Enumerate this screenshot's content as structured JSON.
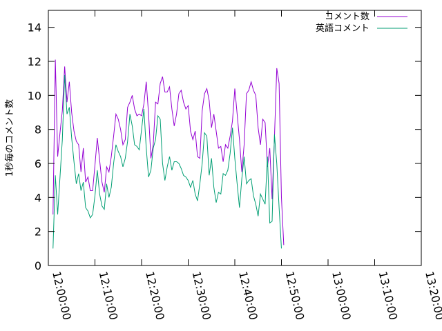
{
  "chart_data": {
    "type": "line",
    "title": "",
    "xlabel": "",
    "ylabel": "1秒毎のコメント数",
    "xlim": [
      "12:00:00",
      "13:20:00"
    ],
    "ylim": [
      0,
      15
    ],
    "xticks": [
      "12:00:00",
      "12:10:00",
      "12:20:00",
      "12:30:00",
      "12:40:00",
      "12:50:00",
      "13:00:00",
      "13:10:00",
      "13:20:00"
    ],
    "yticks": [
      0,
      2,
      4,
      6,
      8,
      10,
      12,
      14
    ],
    "grid": false,
    "legend_position": "top-right",
    "series": [
      {
        "name": "コメント数",
        "color": "#9400d3",
        "points": [
          [
            "12:01:00",
            3.0
          ],
          [
            "12:01:30",
            12.1
          ],
          [
            "12:02:00",
            6.4
          ],
          [
            "12:02:30",
            7.8
          ],
          [
            "12:03:00",
            9.1
          ],
          [
            "12:03:30",
            11.7
          ],
          [
            "12:04:00",
            9.6
          ],
          [
            "12:04:30",
            10.8
          ],
          [
            "12:05:00",
            9.0
          ],
          [
            "12:05:30",
            7.9
          ],
          [
            "12:06:00",
            7.3
          ],
          [
            "12:06:30",
            7.1
          ],
          [
            "12:07:00",
            5.5
          ],
          [
            "12:07:30",
            6.9
          ],
          [
            "12:08:00",
            4.9
          ],
          [
            "12:08:30",
            5.2
          ],
          [
            "12:09:00",
            4.4
          ],
          [
            "12:09:30",
            4.4
          ],
          [
            "12:10:00",
            5.9
          ],
          [
            "12:10:30",
            7.5
          ],
          [
            "12:11:00",
            6.2
          ],
          [
            "12:11:30",
            4.9
          ],
          [
            "12:12:00",
            4.3
          ],
          [
            "12:12:30",
            5.8
          ],
          [
            "12:13:00",
            5.5
          ],
          [
            "12:13:30",
            6.4
          ],
          [
            "12:14:00",
            7.6
          ],
          [
            "12:14:30",
            8.9
          ],
          [
            "12:15:00",
            8.6
          ],
          [
            "12:15:30",
            8.0
          ],
          [
            "12:16:00",
            7.1
          ],
          [
            "12:16:30",
            7.4
          ],
          [
            "12:17:00",
            9.3
          ],
          [
            "12:17:30",
            9.6
          ],
          [
            "12:18:00",
            10.0
          ],
          [
            "12:18:30",
            9.2
          ],
          [
            "12:19:00",
            8.8
          ],
          [
            "12:19:30",
            8.9
          ],
          [
            "12:20:00",
            8.8
          ],
          [
            "12:20:30",
            9.5
          ],
          [
            "12:21:00",
            10.8
          ],
          [
            "12:21:30",
            8.9
          ],
          [
            "12:22:00",
            6.3
          ],
          [
            "12:22:30",
            7.1
          ],
          [
            "12:23:00",
            9.6
          ],
          [
            "12:23:30",
            9.5
          ],
          [
            "12:24:00",
            10.7
          ],
          [
            "12:24:30",
            11.1
          ],
          [
            "12:25:00",
            10.2
          ],
          [
            "12:25:30",
            10.2
          ],
          [
            "12:26:00",
            10.5
          ],
          [
            "12:26:30",
            9.2
          ],
          [
            "12:27:00",
            8.2
          ],
          [
            "12:27:30",
            8.9
          ],
          [
            "12:28:00",
            10.1
          ],
          [
            "12:28:30",
            10.3
          ],
          [
            "12:29:00",
            9.6
          ],
          [
            "12:29:30",
            9.2
          ],
          [
            "12:30:00",
            9.4
          ],
          [
            "12:30:30",
            7.9
          ],
          [
            "12:31:00",
            7.4
          ],
          [
            "12:31:30",
            7.9
          ],
          [
            "12:32:00",
            6.4
          ],
          [
            "12:32:30",
            6.3
          ],
          [
            "12:33:00",
            9.1
          ],
          [
            "12:33:30",
            10.1
          ],
          [
            "12:34:00",
            10.4
          ],
          [
            "12:34:30",
            9.7
          ],
          [
            "12:35:00",
            8.1
          ],
          [
            "12:35:30",
            8.9
          ],
          [
            "12:36:00",
            7.9
          ],
          [
            "12:36:30",
            6.9
          ],
          [
            "12:37:00",
            7.0
          ],
          [
            "12:37:30",
            6.1
          ],
          [
            "12:38:00",
            7.1
          ],
          [
            "12:38:30",
            6.9
          ],
          [
            "12:39:00",
            7.6
          ],
          [
            "12:39:30",
            8.5
          ],
          [
            "12:40:00",
            10.4
          ],
          [
            "12:40:30",
            8.9
          ],
          [
            "12:41:00",
            7.4
          ],
          [
            "12:41:30",
            5.5
          ],
          [
            "12:42:00",
            7.1
          ],
          [
            "12:42:30",
            10.1
          ],
          [
            "12:43:00",
            10.3
          ],
          [
            "12:43:30",
            10.8
          ],
          [
            "12:44:00",
            10.3
          ],
          [
            "12:44:30",
            10.0
          ],
          [
            "12:45:00",
            8.1
          ],
          [
            "12:45:30",
            7.1
          ],
          [
            "12:46:00",
            8.6
          ],
          [
            "12:46:30",
            8.4
          ],
          [
            "12:47:00",
            5.8
          ],
          [
            "12:47:30",
            6.9
          ],
          [
            "12:48:00",
            3.9
          ],
          [
            "12:48:30",
            7.5
          ],
          [
            "12:49:00",
            11.6
          ],
          [
            "12:49:30",
            10.7
          ],
          [
            "12:50:00",
            4.0
          ],
          [
            "12:50:30",
            1.2
          ]
        ]
      },
      {
        "name": "英語コメント",
        "color": "#009e73",
        "points": [
          [
            "12:01:00",
            1.0
          ],
          [
            "12:01:30",
            5.3
          ],
          [
            "12:02:00",
            3.0
          ],
          [
            "12:02:30",
            5.2
          ],
          [
            "12:03:00",
            7.4
          ],
          [
            "12:03:30",
            11.2
          ],
          [
            "12:04:00",
            8.9
          ],
          [
            "12:04:30",
            9.3
          ],
          [
            "12:05:00",
            7.5
          ],
          [
            "12:05:30",
            6.1
          ],
          [
            "12:06:00",
            4.8
          ],
          [
            "12:06:30",
            5.4
          ],
          [
            "12:07:00",
            4.4
          ],
          [
            "12:07:30",
            4.9
          ],
          [
            "12:08:00",
            3.4
          ],
          [
            "12:08:30",
            3.2
          ],
          [
            "12:09:00",
            2.8
          ],
          [
            "12:09:30",
            3.0
          ],
          [
            "12:10:00",
            4.1
          ],
          [
            "12:10:30",
            5.6
          ],
          [
            "12:11:00",
            4.2
          ],
          [
            "12:11:30",
            3.5
          ],
          [
            "12:12:00",
            3.3
          ],
          [
            "12:12:30",
            4.8
          ],
          [
            "12:13:00",
            4.0
          ],
          [
            "12:13:30",
            4.6
          ],
          [
            "12:14:00",
            6.0
          ],
          [
            "12:14:30",
            7.1
          ],
          [
            "12:15:00",
            6.7
          ],
          [
            "12:15:30",
            6.4
          ],
          [
            "12:16:00",
            5.8
          ],
          [
            "12:16:30",
            6.3
          ],
          [
            "12:17:00",
            7.3
          ],
          [
            "12:17:30",
            8.9
          ],
          [
            "12:18:00",
            8.2
          ],
          [
            "12:18:30",
            7.1
          ],
          [
            "12:19:00",
            7.0
          ],
          [
            "12:19:30",
            6.8
          ],
          [
            "12:20:00",
            8.0
          ],
          [
            "12:20:30",
            9.2
          ],
          [
            "12:21:00",
            6.9
          ],
          [
            "12:21:30",
            5.2
          ],
          [
            "12:22:00",
            5.6
          ],
          [
            "12:22:30",
            6.9
          ],
          [
            "12:23:00",
            7.4
          ],
          [
            "12:23:30",
            8.8
          ],
          [
            "12:24:00",
            8.6
          ],
          [
            "12:24:30",
            6.0
          ],
          [
            "12:25:00",
            5.0
          ],
          [
            "12:25:30",
            5.8
          ],
          [
            "12:26:00",
            6.4
          ],
          [
            "12:26:30",
            5.6
          ],
          [
            "12:27:00",
            6.1
          ],
          [
            "12:27:30",
            6.1
          ],
          [
            "12:28:00",
            6.0
          ],
          [
            "12:28:30",
            5.7
          ],
          [
            "12:29:00",
            5.3
          ],
          [
            "12:29:30",
            5.2
          ],
          [
            "12:30:00",
            5.0
          ],
          [
            "12:30:30",
            4.6
          ],
          [
            "12:31:00",
            5.0
          ],
          [
            "12:31:30",
            4.2
          ],
          [
            "12:32:00",
            3.8
          ],
          [
            "12:32:30",
            4.8
          ],
          [
            "12:33:00",
            6.0
          ],
          [
            "12:33:30",
            7.8
          ],
          [
            "12:34:00",
            7.6
          ],
          [
            "12:34:30",
            5.3
          ],
          [
            "12:35:00",
            6.3
          ],
          [
            "12:35:30",
            4.6
          ],
          [
            "12:36:00",
            3.7
          ],
          [
            "12:36:30",
            4.3
          ],
          [
            "12:37:00",
            4.2
          ],
          [
            "12:37:30",
            5.4
          ],
          [
            "12:38:00",
            5.3
          ],
          [
            "12:38:30",
            5.6
          ],
          [
            "12:39:00",
            6.6
          ],
          [
            "12:39:30",
            8.1
          ],
          [
            "12:40:00",
            6.3
          ],
          [
            "12:40:30",
            4.8
          ],
          [
            "12:41:00",
            3.4
          ],
          [
            "12:41:30",
            5.1
          ],
          [
            "12:42:00",
            6.4
          ],
          [
            "12:42:30",
            4.8
          ],
          [
            "12:43:00",
            5.0
          ],
          [
            "12:43:30",
            5.1
          ],
          [
            "12:44:00",
            4.1
          ],
          [
            "12:44:30",
            3.6
          ],
          [
            "12:45:00",
            2.9
          ],
          [
            "12:45:30",
            4.2
          ],
          [
            "12:46:00",
            3.9
          ],
          [
            "12:46:30",
            3.6
          ],
          [
            "12:47:00",
            6.4
          ],
          [
            "12:47:30",
            2.5
          ],
          [
            "12:48:00",
            2.6
          ],
          [
            "12:48:30",
            7.7
          ],
          [
            "12:49:00",
            6.0
          ],
          [
            "12:49:30",
            3.4
          ],
          [
            "12:50:00",
            1.0
          ]
        ]
      }
    ]
  }
}
